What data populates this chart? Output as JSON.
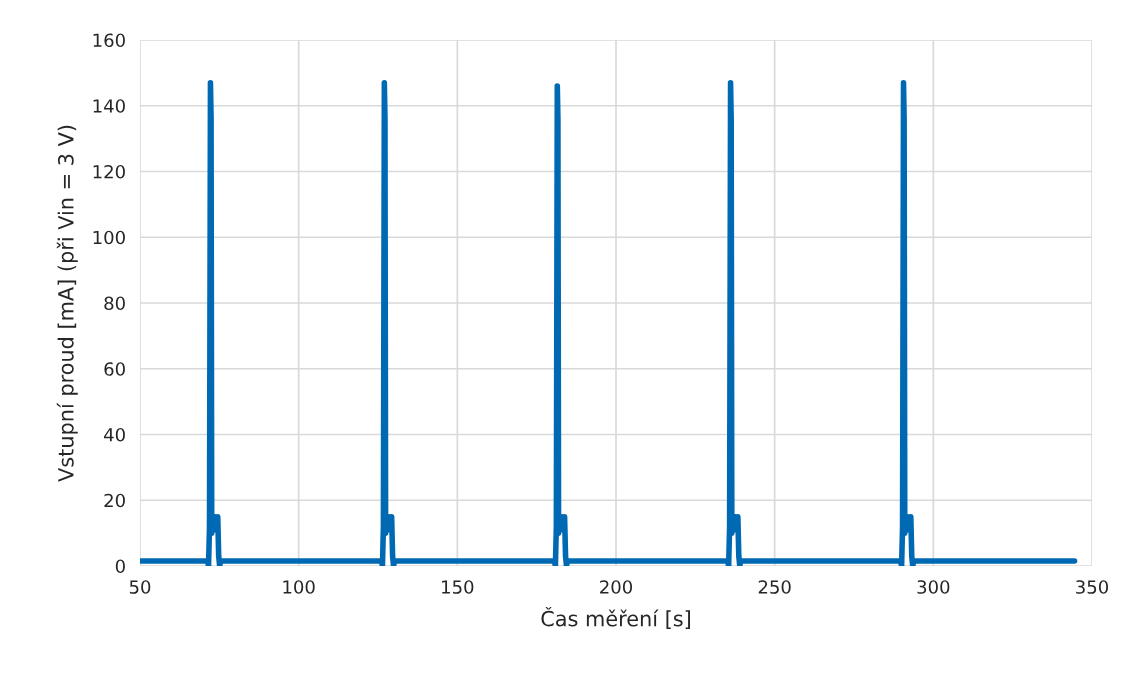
{
  "chart_data": {
    "type": "line",
    "xlabel": "Čas měření [s]",
    "ylabel": "Vstupní proud [mA] (při Vin = 3 V)",
    "xlim": [
      50,
      350
    ],
    "xticks": [
      50,
      100,
      150,
      200,
      250,
      300,
      350
    ],
    "ylim": [
      0,
      160
    ],
    "yticks": [
      0,
      20,
      40,
      60,
      80,
      100,
      120,
      140,
      160
    ],
    "grid": true,
    "line_style": "solid",
    "marker": "none",
    "series": [
      {
        "color": "#0069b4",
        "x": [
          50,
          71.3,
          71.6,
          71.9,
          72.2,
          72.4,
          72.6,
          72.9,
          73.3,
          73.7,
          74.1,
          74.5,
          74.8,
          75.1,
          75.4,
          126.1,
          126.4,
          126.7,
          127.0,
          127.2,
          127.4,
          127.7,
          128.1,
          128.5,
          128.9,
          129.3,
          129.6,
          129.9,
          130.2,
          180.6,
          180.9,
          181.2,
          181.5,
          181.7,
          181.9,
          182.2,
          182.6,
          183.0,
          183.4,
          183.8,
          184.1,
          184.4,
          184.7,
          235.2,
          235.5,
          235.8,
          236.1,
          236.3,
          236.5,
          236.8,
          237.2,
          237.6,
          238.0,
          238.4,
          238.7,
          239.0,
          239.3,
          289.7,
          290.0,
          290.3,
          290.6,
          290.8,
          291.0,
          291.3,
          291.7,
          292.1,
          292.5,
          292.9,
          293.2,
          293.5,
          293.8,
          344.5
        ],
        "values": [
          1.5,
          1.5,
          0,
          12,
          147,
          136,
          10,
          14,
          11,
          15,
          12,
          15,
          3,
          0,
          1.5,
          1.5,
          0,
          12,
          147,
          136,
          10,
          14,
          11,
          15,
          12,
          15,
          3,
          0,
          1.5,
          1.5,
          0,
          12,
          146,
          136,
          10,
          14,
          11,
          15,
          12,
          15,
          3,
          0,
          1.5,
          1.5,
          0,
          12,
          147,
          136,
          10,
          14,
          11,
          15,
          12,
          15,
          3,
          0,
          1.5,
          1.5,
          0,
          12,
          147,
          136,
          10,
          14,
          11,
          15,
          12,
          15,
          3,
          0,
          1.5,
          1.5
        ]
      }
    ]
  }
}
